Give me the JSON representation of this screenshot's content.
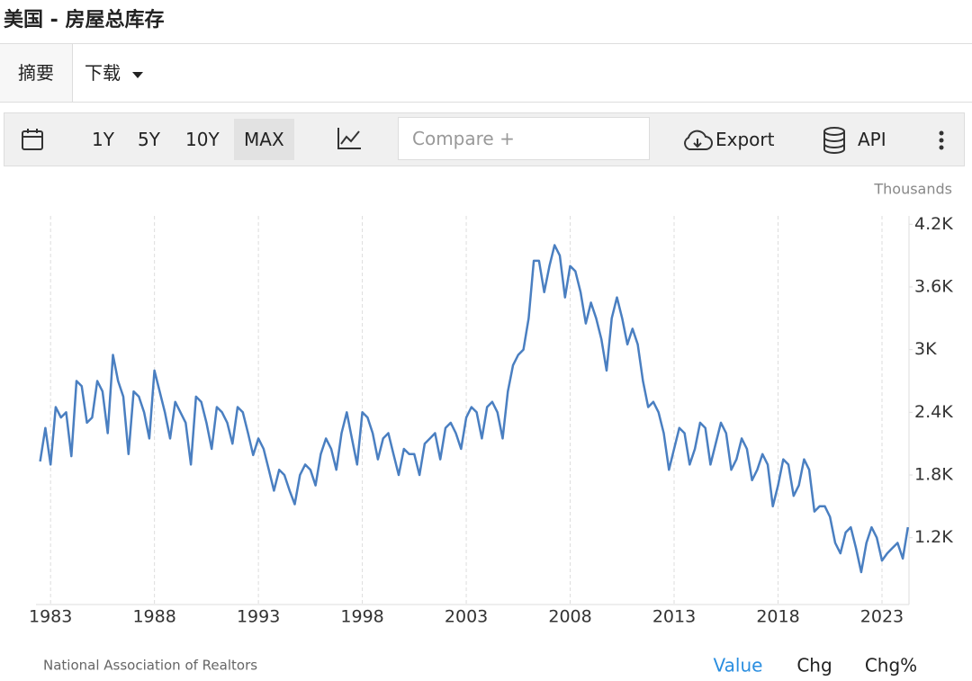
{
  "header": {
    "title": "美国 - 房屋总库存"
  },
  "tabs": [
    "摘要",
    "下载"
  ],
  "toolbar": {
    "ranges": [
      "1Y",
      "5Y",
      "10Y",
      "MAX"
    ],
    "compare": "Compare +",
    "export": "Export",
    "api": "API"
  },
  "chart_data": {
    "type": "line",
    "unit_label": "Thousands",
    "source": "National Association of Realtors",
    "x": [
      1982.5,
      1982.75,
      1983,
      1983.25,
      1983.5,
      1983.75,
      1984,
      1984.25,
      1984.5,
      1984.75,
      1985,
      1985.25,
      1985.5,
      1985.75,
      1986,
      1986.25,
      1986.5,
      1986.75,
      1987,
      1987.25,
      1987.5,
      1987.75,
      1988,
      1988.25,
      1988.5,
      1988.75,
      1989,
      1989.25,
      1989.5,
      1989.75,
      1990,
      1990.25,
      1990.5,
      1990.75,
      1991,
      1991.25,
      1991.5,
      1991.75,
      1992,
      1992.25,
      1992.5,
      1992.75,
      1993,
      1993.25,
      1993.5,
      1993.75,
      1994,
      1994.25,
      1994.5,
      1994.75,
      1995,
      1995.25,
      1995.5,
      1995.75,
      1996,
      1996.25,
      1996.5,
      1996.75,
      1997,
      1997.25,
      1997.5,
      1997.75,
      1998,
      1998.25,
      1998.5,
      1998.75,
      1999,
      1999.25,
      1999.5,
      1999.75,
      2000,
      2000.25,
      2000.5,
      2000.75,
      2001,
      2001.25,
      2001.5,
      2001.75,
      2002,
      2002.25,
      2002.5,
      2002.75,
      2003,
      2003.25,
      2003.5,
      2003.75,
      2004,
      2004.25,
      2004.5,
      2004.75,
      2005,
      2005.25,
      2005.5,
      2005.75,
      2006,
      2006.25,
      2006.5,
      2006.75,
      2007,
      2007.25,
      2007.5,
      2007.75,
      2008,
      2008.25,
      2008.5,
      2008.75,
      2009,
      2009.25,
      2009.5,
      2009.75,
      2010,
      2010.25,
      2010.5,
      2010.75,
      2011,
      2011.25,
      2011.5,
      2011.75,
      2012,
      2012.25,
      2012.5,
      2012.75,
      2013,
      2013.25,
      2013.5,
      2013.75,
      2014,
      2014.25,
      2014.5,
      2014.75,
      2015,
      2015.25,
      2015.5,
      2015.75,
      2016,
      2016.25,
      2016.5,
      2016.75,
      2017,
      2017.25,
      2017.5,
      2017.75,
      2018,
      2018.25,
      2018.5,
      2018.75,
      2019,
      2019.25,
      2019.5,
      2019.75,
      2020,
      2020.25,
      2020.5,
      2020.75,
      2021,
      2021.25,
      2021.5,
      2021.75,
      2022,
      2022.25,
      2022.5,
      2022.75,
      2023,
      2023.25,
      2023.5,
      2023.75,
      2024,
      2024.25
    ],
    "series": [
      {
        "color": "#4a7fc1",
        "values": [
          1930,
          2250,
          1900,
          2450,
          2350,
          2400,
          1980,
          2700,
          2650,
          2300,
          2350,
          2700,
          2600,
          2200,
          2950,
          2700,
          2550,
          2000,
          2600,
          2550,
          2400,
          2150,
          2800,
          2600,
          2400,
          2150,
          2500,
          2400,
          2300,
          1900,
          2550,
          2500,
          2300,
          2050,
          2450,
          2400,
          2300,
          2100,
          2450,
          2400,
          2200,
          1990,
          2150,
          2050,
          1850,
          1650,
          1850,
          1800,
          1650,
          1520,
          1800,
          1900,
          1850,
          1700,
          2000,
          2150,
          2050,
          1850,
          2200,
          2400,
          2150,
          1900,
          2400,
          2350,
          2200,
          1950,
          2150,
          2200,
          2000,
          1800,
          2050,
          2000,
          2000,
          1800,
          2100,
          2150,
          2200,
          1950,
          2250,
          2300,
          2200,
          2050,
          2350,
          2450,
          2400,
          2150,
          2450,
          2500,
          2400,
          2150,
          2600,
          2850,
          2950,
          3000,
          3300,
          3850,
          3850,
          3550,
          3800,
          4000,
          3900,
          3500,
          3800,
          3750,
          3550,
          3250,
          3450,
          3300,
          3100,
          2800,
          3300,
          3500,
          3300,
          3050,
          3200,
          3050,
          2700,
          2450,
          2500,
          2400,
          2200,
          1850,
          2050,
          2250,
          2200,
          1900,
          2050,
          2300,
          2250,
          1900,
          2100,
          2300,
          2200,
          1850,
          1950,
          2150,
          2050,
          1750,
          1850,
          2000,
          1900,
          1500,
          1700,
          1950,
          1900,
          1600,
          1700,
          1950,
          1850,
          1450,
          1500,
          1500,
          1400,
          1150,
          1050,
          1250,
          1300,
          1100,
          870,
          1150,
          1300,
          1200,
          980,
          1050,
          1100,
          1150,
          1000,
          1300
        ]
      }
    ],
    "xlim": [
      1982.3,
      2024.3
    ],
    "xticks": [
      1983,
      1988,
      1993,
      1998,
      2003,
      2008,
      2013,
      2018,
      2023
    ],
    "ylim": [
      560,
      4280
    ],
    "yticks": [
      {
        "value": 1200,
        "label": "1.2K"
      },
      {
        "value": 1800,
        "label": "1.8K"
      },
      {
        "value": 2400,
        "label": "2.4K"
      },
      {
        "value": 3000,
        "label": "3K"
      },
      {
        "value": 3600,
        "label": "3.6K"
      },
      {
        "value": 4200,
        "label": "4.2K"
      }
    ],
    "grid": "x"
  },
  "footer_tabs": [
    "Value",
    "Chg",
    "Chg%"
  ]
}
